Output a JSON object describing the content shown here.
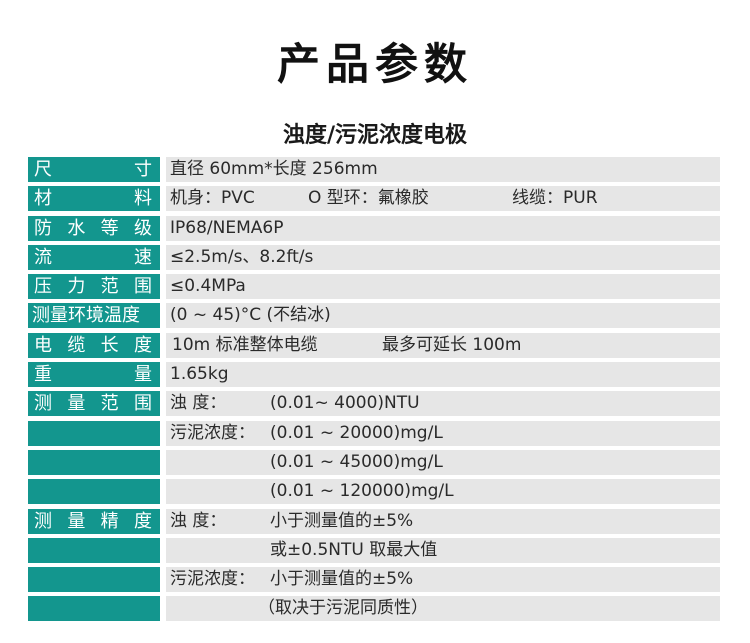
{
  "page": {
    "title": "产品参数",
    "subtitle": "浊度/污泥浓度电极"
  },
  "rows": [
    {
      "label": [
        "尺",
        "寸"
      ],
      "value": "直径 60mm*长度 256mm"
    },
    {
      "label": [
        "材",
        "料"
      ],
      "value_parts": [
        "机身：PVC",
        "O 型环：氟橡胶",
        "线缆：PUR"
      ]
    },
    {
      "label": [
        "防",
        "水",
        "等",
        "级"
      ],
      "value": "IP68/NEMA6P"
    },
    {
      "label": [
        "流",
        "速"
      ],
      "value": "≤2.5m/s、8.2ft/s"
    },
    {
      "label": [
        "压",
        "力",
        "范",
        "围"
      ],
      "value": "≤0.4MPa"
    },
    {
      "label_text": "测量环境温度",
      "value": "(0 ~ 45)°C (不结冰)"
    },
    {
      "label": [
        "电",
        "缆",
        "长",
        "度"
      ],
      "value_parts": [
        "10m 标准整体电缆",
        "最多可延长 100m"
      ]
    },
    {
      "label": [
        "重",
        "量"
      ],
      "value": "1.65kg"
    },
    {
      "label": [
        "测",
        "量",
        "范",
        "围"
      ],
      "value_parts": [
        "浊      度：",
        "(0.01~ 4000)NTU"
      ]
    },
    {
      "value_parts": [
        "污泥浓度：",
        "(0.01 ~ 20000)mg/L"
      ]
    },
    {
      "value_parts": [
        "",
        "(0.01 ~ 45000)mg/L"
      ]
    },
    {
      "value_parts": [
        "",
        "(0.01 ~ 120000)mg/L"
      ]
    },
    {
      "label": [
        "测",
        "量",
        "精",
        "度"
      ],
      "value_parts": [
        "浊      度：",
        "小于测量值的±5%"
      ]
    },
    {
      "value_parts": [
        "",
        "或±0.5NTU 取最大值"
      ]
    },
    {
      "value_parts": [
        "污泥浓度：",
        "小于测量值的±5%"
      ]
    },
    {
      "value_parts": [
        "",
        "（取决于污泥同质性）"
      ]
    }
  ],
  "colors": {
    "label_bg": "#13968e",
    "value_bg": "#e6e6e6",
    "text": "#222222"
  }
}
